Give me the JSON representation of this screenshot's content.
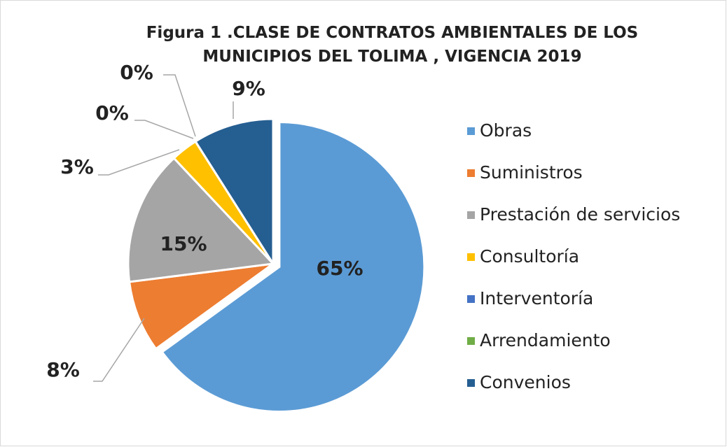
{
  "chart_data": {
    "type": "pie",
    "title": "Figura 1 .CLASE DE CONTRATOS AMBIENTALES DE LOS MUNICIPIOS DEL TOLIMA , VIGENCIA 2019",
    "categories": [
      "Obras",
      "Suministros",
      "Prestación de servicios",
      "Consultoría",
      "Interventoría",
      "Arrendamiento",
      "Convenios"
    ],
    "values": [
      65,
      8,
      15,
      3,
      0,
      0,
      9
    ],
    "value_labels": [
      "65%",
      "8%",
      "15%",
      "3%",
      "0%",
      "0%",
      "9%"
    ],
    "colors": [
      "#5b9bd5",
      "#ed7d31",
      "#a5a5a5",
      "#ffc000",
      "#4472c4",
      "#70ad47",
      "#255e91"
    ],
    "legend": "right"
  }
}
